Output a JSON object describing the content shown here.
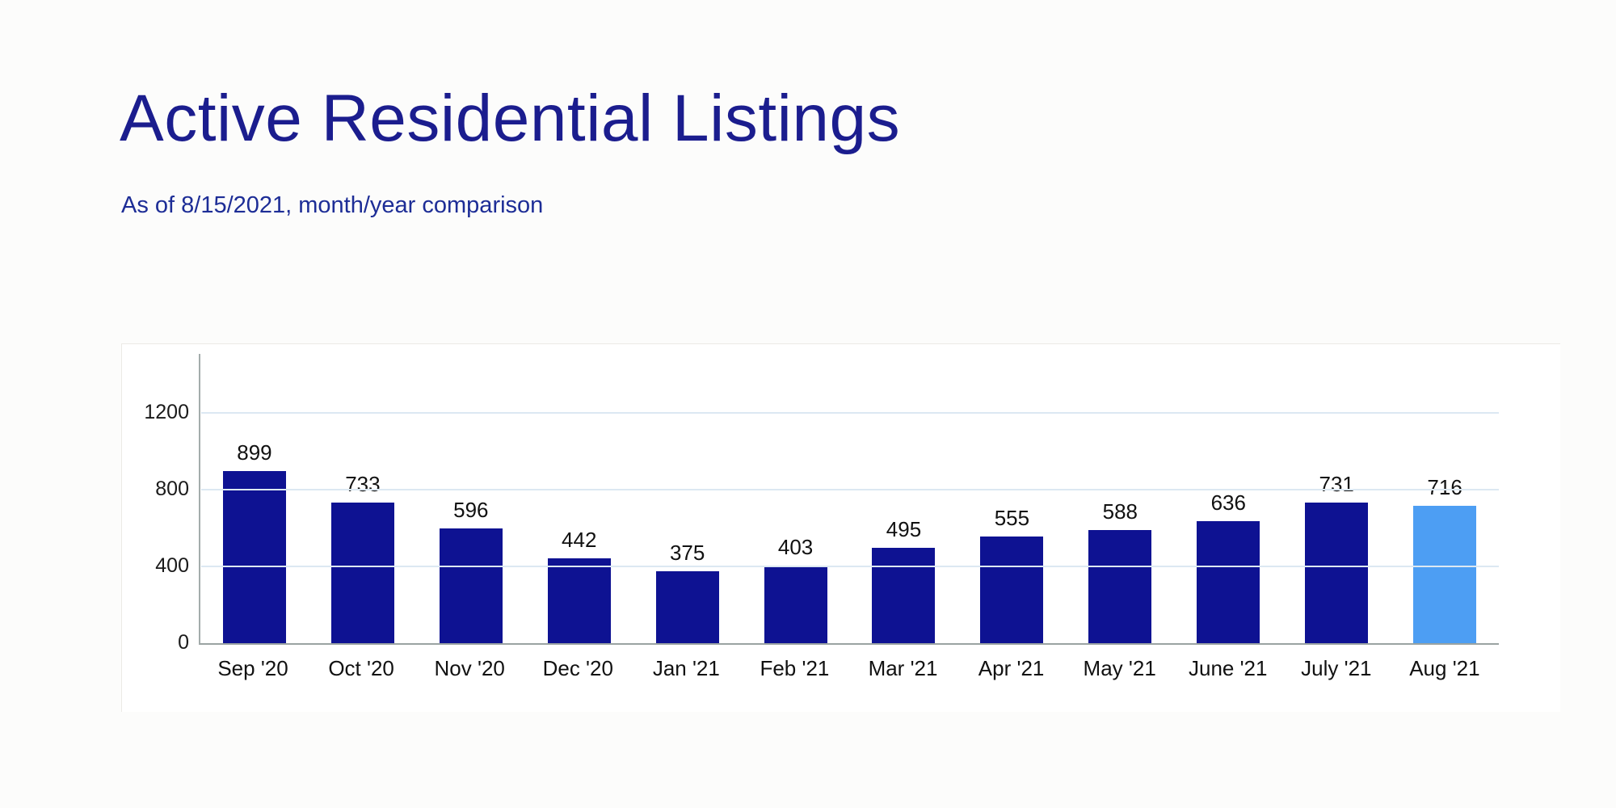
{
  "header": {
    "title": "Active Residential Listings",
    "subtitle": "As of 8/15/2021, month/year comparison"
  },
  "chart_data": {
    "type": "bar",
    "title": "Active Residential Listings",
    "subtitle": "As of 8/15/2021, month/year comparison",
    "categories": [
      "Sep '20",
      "Oct '20",
      "Nov '20",
      "Dec '20",
      "Jan '21",
      "Feb '21",
      "Mar '21",
      "Apr '21",
      "May '21",
      "June '21",
      "July '21",
      "Aug '21"
    ],
    "values": [
      899,
      733,
      596,
      442,
      375,
      403,
      495,
      555,
      588,
      636,
      731,
      716
    ],
    "highlight_index": 11,
    "data_labels": true,
    "y_ticks": [
      0,
      400,
      800,
      1200
    ],
    "ylim": [
      0,
      1515
    ],
    "grid": "horizontal-only",
    "legend": "none",
    "xlabel": "",
    "ylabel": ""
  },
  "colors": {
    "title_text": "#1b1d8e",
    "subtitle_text": "#1d2d96",
    "bar": "#0e1292",
    "bar_highlight": "#4d9ef3",
    "gridline": "#dce8f2",
    "axis": "#a3acab",
    "label_text": "#111111"
  }
}
